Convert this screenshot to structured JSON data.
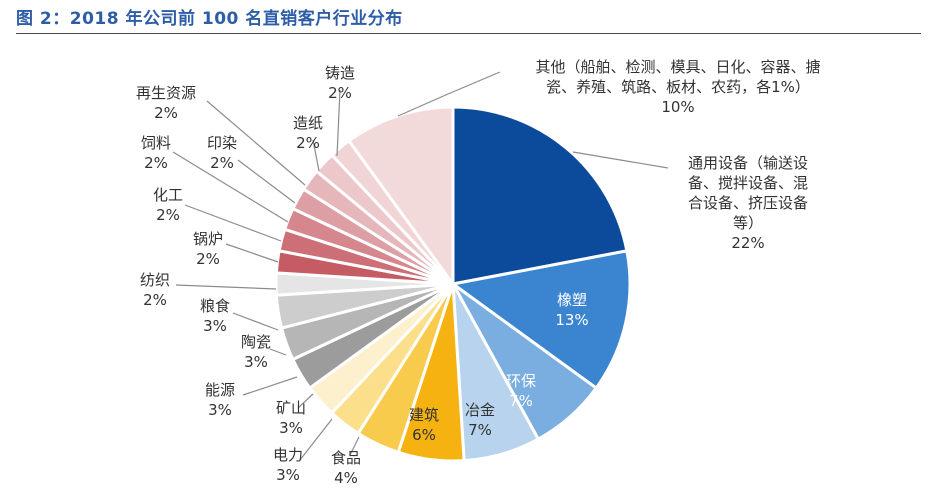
{
  "figure_title": "图 2：2018 年公司前 100 名直销客户行业分布",
  "chart_data": {
    "type": "pie",
    "title": "2018 年公司前 100 名直销客户行业分布",
    "unit": "%",
    "slices": [
      {
        "label_lines": [
          "通用设备（输送设",
          "备、搅拌设备、混",
          "合设备、挤压设备",
          "等）"
        ],
        "value_text": "22%",
        "value": 22,
        "color": "#0c4a9c"
      },
      {
        "label_lines": [
          "橡塑"
        ],
        "value_text": "13%",
        "value": 13,
        "color": "#3b84d0"
      },
      {
        "label_lines": [
          "环保"
        ],
        "value_text": "7%",
        "value": 7,
        "color": "#7aaee0"
      },
      {
        "label_lines": [
          "冶金"
        ],
        "value_text": "7%",
        "value": 7,
        "color": "#b8d3ee"
      },
      {
        "label_lines": [
          "建筑"
        ],
        "value_text": "6%",
        "value": 6,
        "color": "#f5b211"
      },
      {
        "label_lines": [
          "食品"
        ],
        "value_text": "4%",
        "value": 4,
        "color": "#f8cb4d"
      },
      {
        "label_lines": [
          "电力"
        ],
        "value_text": "3%",
        "value": 3,
        "color": "#fbdf8a"
      },
      {
        "label_lines": [
          "矿山"
        ],
        "value_text": "3%",
        "value": 3,
        "color": "#fdf0cc"
      },
      {
        "label_lines": [
          "能源"
        ],
        "value_text": "3%",
        "value": 3,
        "color": "#9c9c9c"
      },
      {
        "label_lines": [
          "陶瓷"
        ],
        "value_text": "3%",
        "value": 3,
        "color": "#b6b6b6"
      },
      {
        "label_lines": [
          "粮食"
        ],
        "value_text": "3%",
        "value": 3,
        "color": "#cdcdcd"
      },
      {
        "label_lines": [
          "纺织"
        ],
        "value_text": "2%",
        "value": 2,
        "color": "#e5e5e5"
      },
      {
        "label_lines": [
          "锅炉"
        ],
        "value_text": "2%",
        "value": 2,
        "color": "#c55b63"
      },
      {
        "label_lines": [
          "化工"
        ],
        "value_text": "2%",
        "value": 2,
        "color": "#cd6f76"
      },
      {
        "label_lines": [
          "饲料"
        ],
        "value_text": "2%",
        "value": 2,
        "color": "#d5878d"
      },
      {
        "label_lines": [
          "印染"
        ],
        "value_text": "2%",
        "value": 2,
        "color": "#dd9fa4"
      },
      {
        "label_lines": [
          "再生资源"
        ],
        "value_text": "2%",
        "value": 2,
        "color": "#e5b6ba"
      },
      {
        "label_lines": [
          "造纸"
        ],
        "value_text": "2%",
        "value": 2,
        "color": "#ecc8cb"
      },
      {
        "label_lines": [
          "铸造"
        ],
        "value_text": "2%",
        "value": 2,
        "color": "#f1d4d6"
      },
      {
        "label_lines": [
          "其他（船舶、检测、模具、日化、容器、搪",
          "瓷、养殖、筑路、板材、农药，各1%）"
        ],
        "value_text": "10%",
        "value": 10,
        "color": "#f3dada"
      }
    ]
  }
}
